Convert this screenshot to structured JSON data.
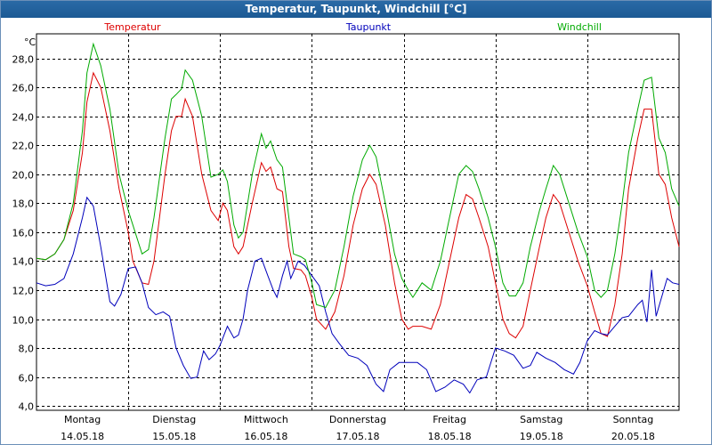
{
  "window": {
    "title": "Temperatur, Taupunkt, Windchill [°C]"
  },
  "chart_data": {
    "type": "line",
    "title": "Temperatur, Taupunkt, Windchill [°C]",
    "ylabel": "°C",
    "ylim": [
      3.7,
      29.7
    ],
    "yticks": [
      4,
      6,
      8,
      10,
      12,
      14,
      16,
      18,
      20,
      22,
      24,
      26,
      28
    ],
    "ytick_labels": [
      "4,0",
      "6,0",
      "8,0",
      "10,0",
      "12,0",
      "14,0",
      "16,0",
      "18,0",
      "20,0",
      "22,0",
      "24,0",
      "26,0",
      "28,0"
    ],
    "xlim": [
      0,
      7
    ],
    "x_unit": "days since 14.05.18 00:00",
    "x_ticks": [
      {
        "day": "Montag",
        "date": "14.05.18"
      },
      {
        "day": "Dienstag",
        "date": "15.05.18"
      },
      {
        "day": "Mittwoch",
        "date": "16.05.18"
      },
      {
        "day": "Donnerstag",
        "date": "17.05.18"
      },
      {
        "day": "Freitag",
        "date": "18.05.18"
      },
      {
        "day": "Samstag",
        "date": "19.05.18"
      },
      {
        "day": "Sonntag",
        "date": "20.05.18"
      }
    ],
    "grid": true,
    "series": [
      {
        "name": "Temperatur",
        "color": "#dd0000",
        "points": [
          [
            0,
            14.2
          ],
          [
            0.1,
            14.1
          ],
          [
            0.2,
            14.5
          ],
          [
            0.3,
            15.5
          ],
          [
            0.4,
            17.5
          ],
          [
            0.5,
            21.5
          ],
          [
            0.55,
            25
          ],
          [
            0.62,
            27
          ],
          [
            0.7,
            26
          ],
          [
            0.8,
            23
          ],
          [
            0.9,
            19
          ],
          [
            1.0,
            16
          ],
          [
            1.05,
            14
          ],
          [
            1.15,
            12.5
          ],
          [
            1.22,
            12.4
          ],
          [
            1.28,
            14
          ],
          [
            1.4,
            20
          ],
          [
            1.47,
            23
          ],
          [
            1.52,
            24
          ],
          [
            1.58,
            24
          ],
          [
            1.62,
            25.2
          ],
          [
            1.7,
            24
          ],
          [
            1.8,
            20
          ],
          [
            1.9,
            17.5
          ],
          [
            1.98,
            16.8
          ],
          [
            2.03,
            18
          ],
          [
            2.08,
            17.5
          ],
          [
            2.15,
            15
          ],
          [
            2.2,
            14.5
          ],
          [
            2.25,
            15
          ],
          [
            2.35,
            18
          ],
          [
            2.45,
            20.8
          ],
          [
            2.5,
            20.2
          ],
          [
            2.55,
            20.5
          ],
          [
            2.62,
            19
          ],
          [
            2.68,
            18.8
          ],
          [
            2.75,
            15
          ],
          [
            2.8,
            13.5
          ],
          [
            2.88,
            13.4
          ],
          [
            2.93,
            13
          ],
          [
            3.0,
            11.5
          ],
          [
            3.05,
            10
          ],
          [
            3.15,
            9.3
          ],
          [
            3.25,
            10.5
          ],
          [
            3.35,
            13
          ],
          [
            3.45,
            16.5
          ],
          [
            3.55,
            19
          ],
          [
            3.63,
            20
          ],
          [
            3.7,
            19.3
          ],
          [
            3.8,
            16.5
          ],
          [
            3.9,
            12.5
          ],
          [
            3.98,
            10
          ],
          [
            4.05,
            9.3
          ],
          [
            4.1,
            9.5
          ],
          [
            4.2,
            9.5
          ],
          [
            4.3,
            9.3
          ],
          [
            4.4,
            11
          ],
          [
            4.5,
            14
          ],
          [
            4.6,
            17
          ],
          [
            4.68,
            18.6
          ],
          [
            4.75,
            18.3
          ],
          [
            4.82,
            17
          ],
          [
            4.92,
            15
          ],
          [
            5.0,
            12.5
          ],
          [
            5.08,
            10
          ],
          [
            5.15,
            9
          ],
          [
            5.22,
            8.7
          ],
          [
            5.3,
            9.5
          ],
          [
            5.38,
            12
          ],
          [
            5.48,
            15
          ],
          [
            5.55,
            17
          ],
          [
            5.63,
            18.6
          ],
          [
            5.7,
            18
          ],
          [
            5.8,
            16
          ],
          [
            5.9,
            14
          ],
          [
            6.0,
            12.3
          ],
          [
            6.08,
            10.5
          ],
          [
            6.15,
            9
          ],
          [
            6.22,
            8.8
          ],
          [
            6.3,
            11
          ],
          [
            6.38,
            14.5
          ],
          [
            6.45,
            19
          ],
          [
            6.55,
            22.5
          ],
          [
            6.62,
            24.5
          ],
          [
            6.7,
            24.5
          ],
          [
            6.78,
            20
          ],
          [
            6.85,
            19.3
          ],
          [
            6.92,
            17
          ],
          [
            7.0,
            15
          ]
        ]
      },
      {
        "name": "Taupunkt",
        "color": "#0000bb",
        "points": [
          [
            0,
            12.5
          ],
          [
            0.1,
            12.3
          ],
          [
            0.2,
            12.4
          ],
          [
            0.3,
            12.8
          ],
          [
            0.4,
            14.5
          ],
          [
            0.5,
            17
          ],
          [
            0.55,
            18.4
          ],
          [
            0.62,
            17.8
          ],
          [
            0.7,
            15
          ],
          [
            0.8,
            11.2
          ],
          [
            0.85,
            10.9
          ],
          [
            0.92,
            11.7
          ],
          [
            1.0,
            13.5
          ],
          [
            1.08,
            13.6
          ],
          [
            1.15,
            12.5
          ],
          [
            1.22,
            10.8
          ],
          [
            1.3,
            10.3
          ],
          [
            1.38,
            10.5
          ],
          [
            1.45,
            10.2
          ],
          [
            1.52,
            8
          ],
          [
            1.6,
            6.8
          ],
          [
            1.68,
            5.9
          ],
          [
            1.75,
            6
          ],
          [
            1.82,
            7.8
          ],
          [
            1.88,
            7.2
          ],
          [
            1.95,
            7.6
          ],
          [
            2.0,
            8.2
          ],
          [
            2.08,
            9.5
          ],
          [
            2.15,
            8.7
          ],
          [
            2.2,
            8.9
          ],
          [
            2.25,
            10
          ],
          [
            2.3,
            12
          ],
          [
            2.38,
            14
          ],
          [
            2.45,
            14.2
          ],
          [
            2.52,
            13
          ],
          [
            2.58,
            12
          ],
          [
            2.62,
            11.5
          ],
          [
            2.68,
            13
          ],
          [
            2.73,
            14
          ],
          [
            2.77,
            12.8
          ],
          [
            2.85,
            14
          ],
          [
            2.92,
            13.7
          ],
          [
            3.0,
            13
          ],
          [
            3.08,
            12.3
          ],
          [
            3.15,
            10.5
          ],
          [
            3.22,
            9
          ],
          [
            3.3,
            8.3
          ],
          [
            3.4,
            7.5
          ],
          [
            3.5,
            7.3
          ],
          [
            3.6,
            6.8
          ],
          [
            3.7,
            5.5
          ],
          [
            3.78,
            5
          ],
          [
            3.85,
            6.5
          ],
          [
            3.95,
            7
          ],
          [
            4.05,
            7
          ],
          [
            4.15,
            7
          ],
          [
            4.25,
            6.5
          ],
          [
            4.35,
            5
          ],
          [
            4.45,
            5.3
          ],
          [
            4.55,
            5.8
          ],
          [
            4.65,
            5.5
          ],
          [
            4.72,
            4.9
          ],
          [
            4.8,
            5.8
          ],
          [
            4.9,
            6
          ],
          [
            5.0,
            8
          ],
          [
            5.1,
            7.8
          ],
          [
            5.2,
            7.5
          ],
          [
            5.3,
            6.6
          ],
          [
            5.38,
            6.8
          ],
          [
            5.45,
            7.7
          ],
          [
            5.55,
            7.3
          ],
          [
            5.65,
            7
          ],
          [
            5.75,
            6.5
          ],
          [
            5.85,
            6.2
          ],
          [
            5.92,
            7
          ],
          [
            6.0,
            8.5
          ],
          [
            6.08,
            9.2
          ],
          [
            6.15,
            9
          ],
          [
            6.22,
            8.9
          ],
          [
            6.3,
            9.5
          ],
          [
            6.38,
            10.1
          ],
          [
            6.45,
            10.2
          ],
          [
            6.55,
            11
          ],
          [
            6.6,
            11.3
          ],
          [
            6.65,
            9.8
          ],
          [
            6.7,
            13.4
          ],
          [
            6.75,
            10.2
          ],
          [
            6.8,
            11.3
          ],
          [
            6.87,
            12.8
          ],
          [
            6.93,
            12.5
          ],
          [
            7.0,
            12.4
          ]
        ]
      },
      {
        "name": "Windchill",
        "color": "#00aa00",
        "points": [
          [
            0,
            14.2
          ],
          [
            0.1,
            14.1
          ],
          [
            0.2,
            14.5
          ],
          [
            0.3,
            15.5
          ],
          [
            0.4,
            18
          ],
          [
            0.5,
            23
          ],
          [
            0.55,
            27
          ],
          [
            0.62,
            29
          ],
          [
            0.7,
            27.5
          ],
          [
            0.8,
            24.5
          ],
          [
            0.9,
            20
          ],
          [
            1.0,
            17.5
          ],
          [
            1.05,
            16.5
          ],
          [
            1.15,
            14.5
          ],
          [
            1.22,
            14.8
          ],
          [
            1.28,
            17
          ],
          [
            1.4,
            22.5
          ],
          [
            1.47,
            25.2
          ],
          [
            1.52,
            25.5
          ],
          [
            1.58,
            25.9
          ],
          [
            1.62,
            27.2
          ],
          [
            1.7,
            26.5
          ],
          [
            1.8,
            24
          ],
          [
            1.9,
            19.8
          ],
          [
            1.98,
            20
          ],
          [
            2.03,
            20.3
          ],
          [
            2.08,
            19.5
          ],
          [
            2.15,
            16.5
          ],
          [
            2.2,
            15.6
          ],
          [
            2.25,
            16
          ],
          [
            2.35,
            20
          ],
          [
            2.45,
            22.8
          ],
          [
            2.5,
            21.8
          ],
          [
            2.55,
            22.3
          ],
          [
            2.62,
            21
          ],
          [
            2.68,
            20.5
          ],
          [
            2.75,
            17
          ],
          [
            2.8,
            14.5
          ],
          [
            2.88,
            14.3
          ],
          [
            2.93,
            14.1
          ],
          [
            3.0,
            12.5
          ],
          [
            3.05,
            11
          ],
          [
            3.15,
            10.8
          ],
          [
            3.25,
            12
          ],
          [
            3.35,
            15
          ],
          [
            3.45,
            18.5
          ],
          [
            3.55,
            21
          ],
          [
            3.63,
            22
          ],
          [
            3.7,
            21.2
          ],
          [
            3.8,
            18
          ],
          [
            3.9,
            14.5
          ],
          [
            3.98,
            12.8
          ],
          [
            4.05,
            12
          ],
          [
            4.1,
            11.5
          ],
          [
            4.2,
            12.5
          ],
          [
            4.3,
            12
          ],
          [
            4.4,
            14
          ],
          [
            4.5,
            17
          ],
          [
            4.6,
            20
          ],
          [
            4.68,
            20.6
          ],
          [
            4.75,
            20.2
          ],
          [
            4.82,
            19
          ],
          [
            4.92,
            17
          ],
          [
            5.0,
            15
          ],
          [
            5.08,
            12.5
          ],
          [
            5.15,
            11.6
          ],
          [
            5.22,
            11.6
          ],
          [
            5.3,
            12.5
          ],
          [
            5.38,
            15
          ],
          [
            5.48,
            17.5
          ],
          [
            5.55,
            19
          ],
          [
            5.63,
            20.6
          ],
          [
            5.7,
            20
          ],
          [
            5.8,
            18
          ],
          [
            5.9,
            16
          ],
          [
            6.0,
            14.3
          ],
          [
            6.08,
            12
          ],
          [
            6.15,
            11.5
          ],
          [
            6.22,
            12
          ],
          [
            6.3,
            14.5
          ],
          [
            6.38,
            18
          ],
          [
            6.45,
            21.5
          ],
          [
            6.55,
            24.5
          ],
          [
            6.62,
            26.5
          ],
          [
            6.7,
            26.7
          ],
          [
            6.78,
            22.5
          ],
          [
            6.85,
            21.5
          ],
          [
            6.92,
            19
          ],
          [
            7.0,
            17.8
          ]
        ]
      }
    ]
  }
}
